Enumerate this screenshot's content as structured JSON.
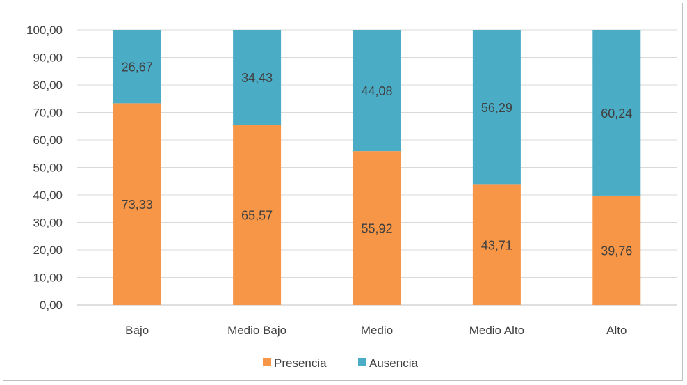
{
  "chart_data": {
    "type": "bar",
    "stacked": true,
    "title": "",
    "xlabel": "",
    "ylabel": "",
    "ylim": [
      0,
      100
    ],
    "yticks": [
      "0,00",
      "10,00",
      "20,00",
      "30,00",
      "40,00",
      "50,00",
      "60,00",
      "70,00",
      "80,00",
      "90,00",
      "100,00"
    ],
    "categories": [
      "Bajo",
      "Medio Bajo",
      "Medio",
      "Medio Alto",
      "Alto"
    ],
    "series": [
      {
        "name": "Presencia",
        "color": "#f79646",
        "values": [
          73.33,
          65.57,
          55.92,
          43.71,
          39.76
        ],
        "labels": [
          "73,33",
          "65,57",
          "55,92",
          "43,71",
          "39,76"
        ]
      },
      {
        "name": "Ausencia",
        "color": "#4bacc6",
        "values": [
          26.67,
          34.43,
          44.08,
          56.29,
          60.24
        ],
        "labels": [
          "26,67",
          "34,43",
          "44,08",
          "56,29",
          "60,24"
        ]
      }
    ],
    "grid": true,
    "legend_position": "bottom"
  }
}
